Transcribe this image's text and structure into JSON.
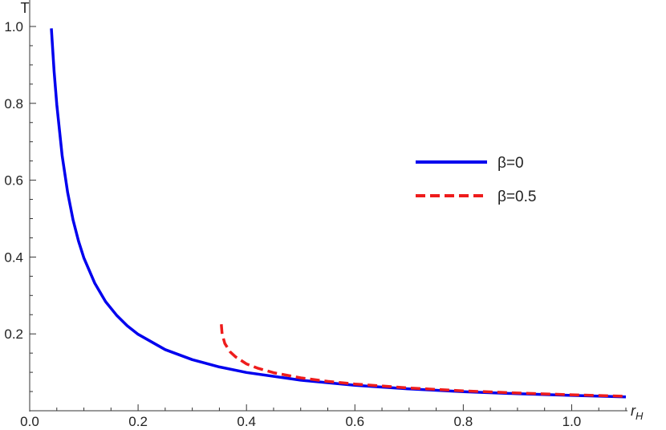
{
  "chart_data": {
    "type": "line",
    "xlabel": "r_H",
    "ylabel": "T",
    "xlim": [
      0.0,
      1.1
    ],
    "ylim": [
      0.0,
      1.0
    ],
    "x_ticks": [
      "0.0",
      "0.2",
      "0.4",
      "0.6",
      "0.8",
      "1.0"
    ],
    "y_ticks": [
      "0.2",
      "0.4",
      "0.6",
      "0.8",
      "1.0"
    ],
    "grid": false,
    "legend_position": "right",
    "series": [
      {
        "name": "β=0",
        "color": "#0000ee",
        "style": "solid",
        "x": [
          0.04,
          0.045,
          0.05,
          0.06,
          0.07,
          0.08,
          0.09,
          0.1,
          0.12,
          0.14,
          0.16,
          0.18,
          0.2,
          0.25,
          0.3,
          0.35,
          0.4,
          0.5,
          0.6,
          0.7,
          0.8,
          0.9,
          1.0,
          1.1
        ],
        "y": [
          0.995,
          0.884,
          0.796,
          0.663,
          0.568,
          0.497,
          0.442,
          0.398,
          0.332,
          0.284,
          0.249,
          0.221,
          0.199,
          0.159,
          0.133,
          0.114,
          0.0995,
          0.0796,
          0.0663,
          0.0568,
          0.0497,
          0.0442,
          0.0398,
          0.0362
        ]
      },
      {
        "name": "β=0.5",
        "color": "#ee1c1c",
        "style": "dashed",
        "x": [
          0.3536,
          0.355,
          0.36,
          0.37,
          0.38,
          0.4,
          0.42,
          0.45,
          0.5,
          0.55,
          0.6,
          0.7,
          0.8,
          0.9,
          1.0,
          1.1
        ],
        "y": [
          0.225,
          0.2,
          0.175,
          0.153,
          0.14,
          0.122,
          0.111,
          0.099,
          0.0855,
          0.0764,
          0.0696,
          0.0592,
          0.0518,
          0.0461,
          0.0415,
          0.0376
        ]
      }
    ]
  }
}
